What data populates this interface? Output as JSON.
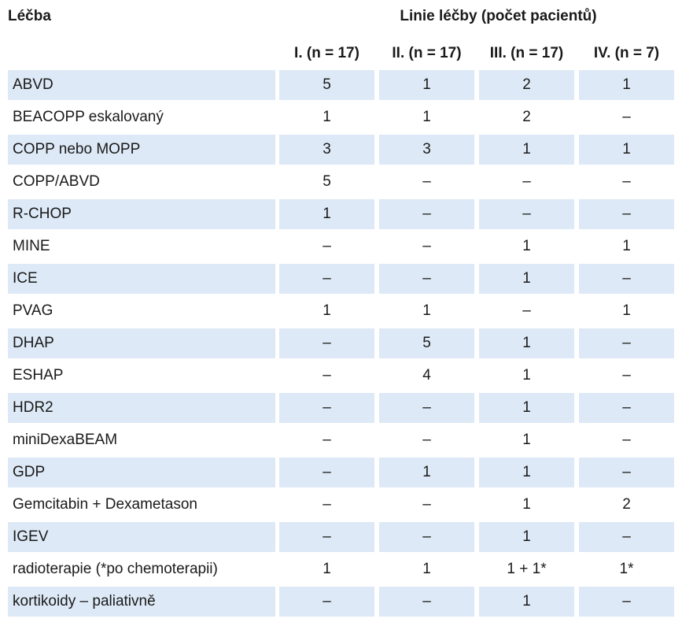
{
  "table": {
    "header_treatment": "Léčba",
    "header_group": "Linie léčby (počet pacientů)",
    "columns": [
      "I. (n = 17)",
      "II. (n = 17)",
      "III. (n = 17)",
      "IV. (n = 7)"
    ],
    "rows": [
      {
        "label": "ABVD",
        "values": [
          "5",
          "1",
          "2",
          "1"
        ]
      },
      {
        "label": "BEACOPP eskalovaný",
        "values": [
          "1",
          "1",
          "2",
          "–"
        ]
      },
      {
        "label": "COPP nebo MOPP",
        "values": [
          "3",
          "3",
          "1",
          "1"
        ]
      },
      {
        "label": "COPP/ABVD",
        "values": [
          "5",
          "–",
          "–",
          "–"
        ]
      },
      {
        "label": "R-CHOP",
        "values": [
          "1",
          "–",
          "–",
          "–"
        ]
      },
      {
        "label": "MINE",
        "values": [
          "–",
          "–",
          "1",
          "1"
        ]
      },
      {
        "label": "ICE",
        "values": [
          "–",
          "–",
          "1",
          "–"
        ]
      },
      {
        "label": "PVAG",
        "values": [
          "1",
          "1",
          "–",
          "1"
        ]
      },
      {
        "label": "DHAP",
        "values": [
          "–",
          "5",
          "1",
          "–"
        ]
      },
      {
        "label": "ESHAP",
        "values": [
          "–",
          "4",
          "1",
          "–"
        ]
      },
      {
        "label": "HDR2",
        "values": [
          "–",
          "–",
          "1",
          "–"
        ]
      },
      {
        "label": "miniDexaBEAM",
        "values": [
          "–",
          "–",
          "1",
          "–"
        ]
      },
      {
        "label": "GDP",
        "values": [
          "–",
          "1",
          "1",
          "–"
        ]
      },
      {
        "label": "Gemcitabin + Dexametason",
        "values": [
          "–",
          "–",
          "1",
          "2"
        ]
      },
      {
        "label": "IGEV",
        "values": [
          "–",
          "–",
          "1",
          "–"
        ]
      },
      {
        "label": "radioterapie (*po chemoterapii)",
        "values": [
          "1",
          "1",
          "1 + 1*",
          "1*"
        ]
      },
      {
        "label": "kortikoidy – paliativně",
        "values": [
          "–",
          "–",
          "1",
          "–"
        ]
      }
    ]
  },
  "colors": {
    "row_shade": "#dde9f6",
    "text": "#1a1a1a"
  }
}
